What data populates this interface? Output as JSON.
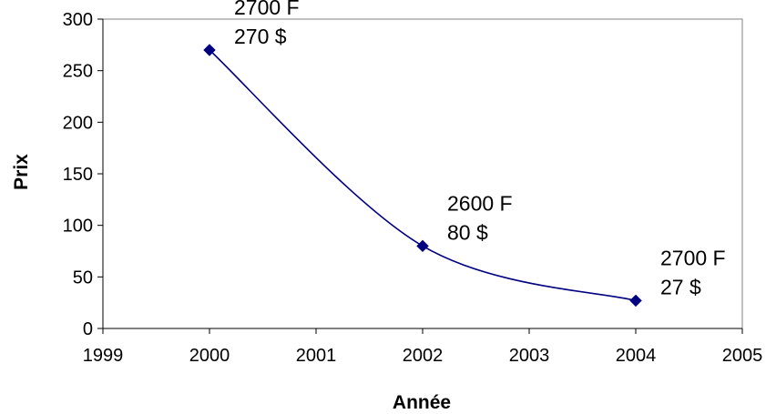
{
  "chart_data": {
    "type": "line",
    "title": "",
    "xlabel": "Année",
    "ylabel": "Prix",
    "xlim": [
      1999,
      2005
    ],
    "ylim": [
      0,
      300
    ],
    "x_ticks": [
      "1999",
      "2000",
      "2001",
      "2002",
      "2003",
      "2004",
      "2005"
    ],
    "y_ticks": [
      "0",
      "50",
      "100",
      "150",
      "200",
      "250",
      "300"
    ],
    "grid": false,
    "legend": "none",
    "smooth": true,
    "series": [
      {
        "color": "#000080",
        "marker": "diamond",
        "points": [
          {
            "x": 2000,
            "y": 270,
            "label": [
              "2700 F",
              "270 $"
            ]
          },
          {
            "x": 2002,
            "y": 80,
            "label": [
              "2600 F",
              "80 $"
            ]
          },
          {
            "x": 2004,
            "y": 27,
            "label": [
              "2700 F",
              "27 $"
            ]
          }
        ]
      }
    ]
  }
}
